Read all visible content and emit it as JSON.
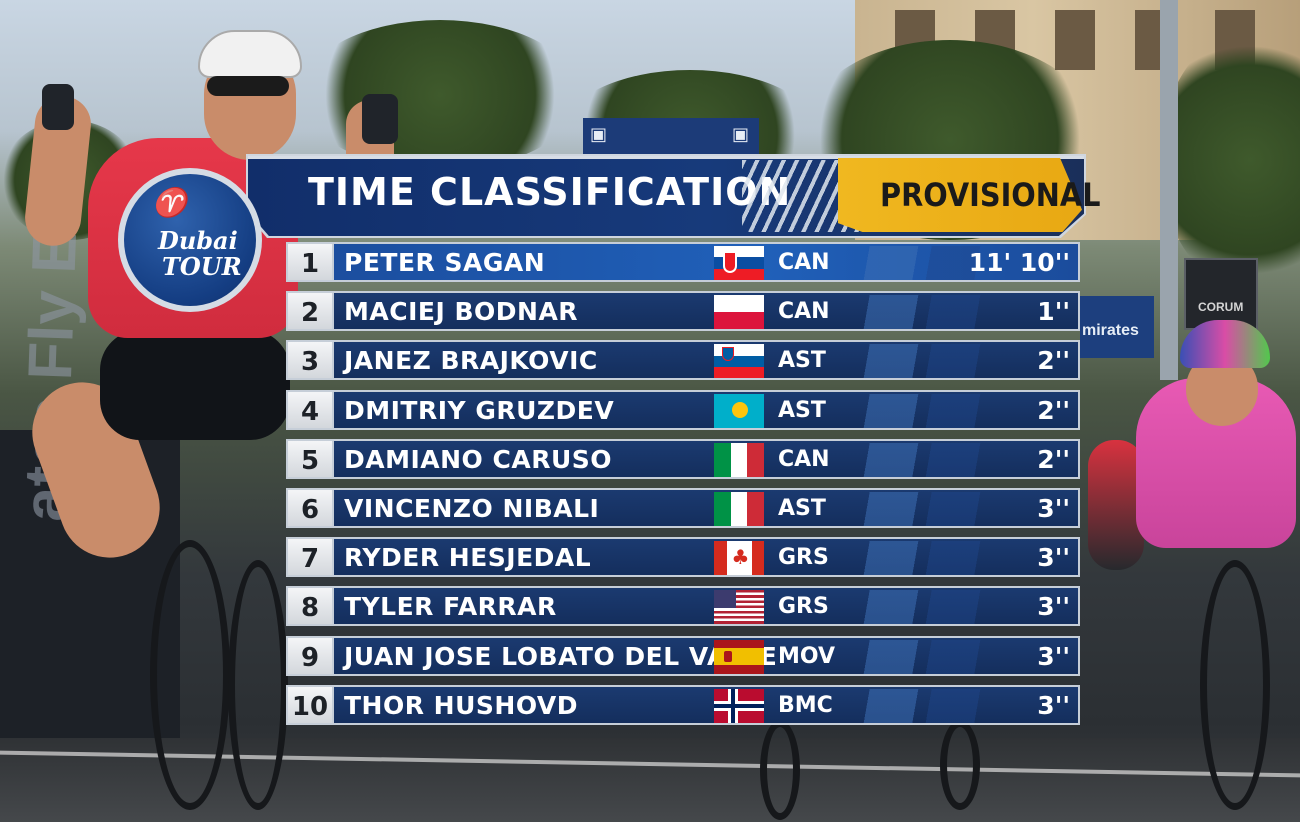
{
  "graphic": {
    "title": "TIME CLASSIFICATION",
    "status": "PROVISIONAL",
    "logo_line1": "Dubai",
    "logo_line2": "TOUR",
    "logo_icon": "cyclist-icon"
  },
  "colors": {
    "header_blue": "#112e6a",
    "status_gold": "#f0b820",
    "row_blue": "#1b3a70",
    "leader_highlight": "#2060b9",
    "position_box": "#f4f5f7"
  },
  "standings": [
    {
      "pos": "1",
      "name": "PETER SAGAN",
      "country": "slovakia-flag",
      "team": "CAN",
      "time": "11' 10''"
    },
    {
      "pos": "2",
      "name": "MACIEJ BODNAR",
      "country": "poland-flag",
      "team": "CAN",
      "time": "1''"
    },
    {
      "pos": "3",
      "name": "JANEZ BRAJKOVIC",
      "country": "slovenia-flag",
      "team": "AST",
      "time": "2''"
    },
    {
      "pos": "4",
      "name": "DMITRIY GRUZDEV",
      "country": "kazakhstan-flag",
      "team": "AST",
      "time": "2''"
    },
    {
      "pos": "5",
      "name": "DAMIANO CARUSO",
      "country": "italy-flag",
      "team": "CAN",
      "time": "2''"
    },
    {
      "pos": "6",
      "name": "VINCENZO NIBALI",
      "country": "italy-flag",
      "team": "AST",
      "time": "3''"
    },
    {
      "pos": "7",
      "name": "RYDER HESJEDAL",
      "country": "canada-flag",
      "team": "GRS",
      "time": "3''"
    },
    {
      "pos": "8",
      "name": "TYLER FARRAR",
      "country": "usa-flag",
      "team": "GRS",
      "time": "3''"
    },
    {
      "pos": "9",
      "name": "JUAN JOSE LOBATO DEL VALLE",
      "country": "spain-flag",
      "team": "MOV",
      "time": "3''"
    },
    {
      "pos": "10",
      "name": "THOR HUSHOVD",
      "country": "norway-flag",
      "team": "BMC",
      "time": "3''"
    }
  ],
  "background": {
    "hoarding_text": "ates Fly Emi",
    "emirates_board": "mirates",
    "corum_board": "CORUM"
  }
}
